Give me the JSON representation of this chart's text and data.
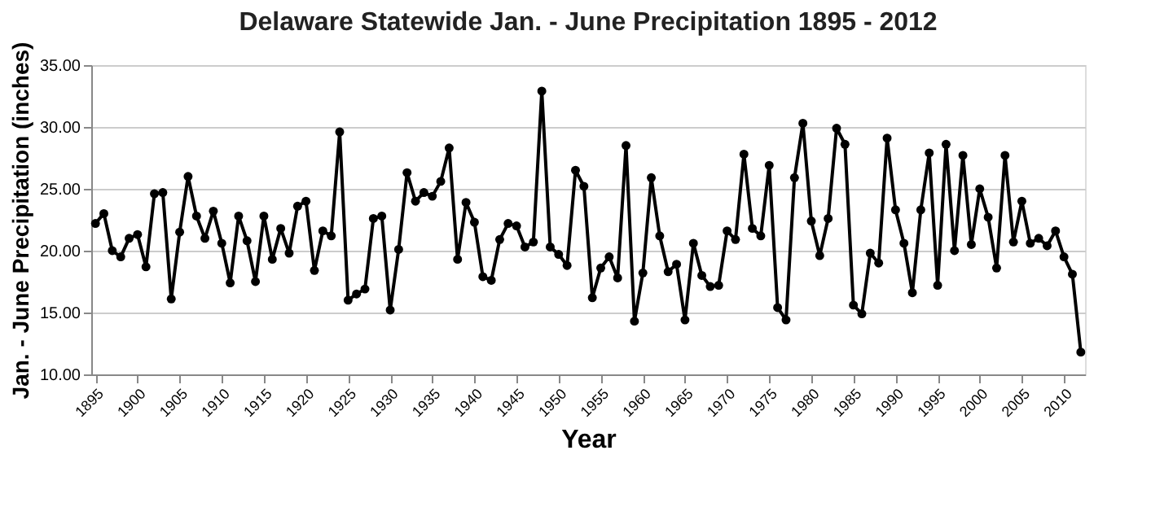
{
  "chart_data": {
    "type": "line",
    "title": "Delaware Statewide Jan. - June Precipitation 1895 - 2012",
    "xlabel": "Year",
    "ylabel": "Jan. - June Precipitation (inches)",
    "x": [
      1895,
      1896,
      1897,
      1898,
      1899,
      1900,
      1901,
      1902,
      1903,
      1904,
      1905,
      1906,
      1907,
      1908,
      1909,
      1910,
      1911,
      1912,
      1913,
      1914,
      1915,
      1916,
      1917,
      1918,
      1919,
      1920,
      1921,
      1922,
      1923,
      1924,
      1925,
      1926,
      1927,
      1928,
      1929,
      1930,
      1931,
      1932,
      1933,
      1934,
      1935,
      1936,
      1937,
      1938,
      1939,
      1940,
      1941,
      1942,
      1943,
      1944,
      1945,
      1946,
      1947,
      1948,
      1949,
      1950,
      1951,
      1952,
      1953,
      1954,
      1955,
      1956,
      1957,
      1958,
      1959,
      1960,
      1961,
      1962,
      1963,
      1964,
      1965,
      1966,
      1967,
      1968,
      1969,
      1970,
      1971,
      1972,
      1973,
      1974,
      1975,
      1976,
      1977,
      1978,
      1979,
      1980,
      1981,
      1982,
      1983,
      1984,
      1985,
      1986,
      1987,
      1988,
      1989,
      1990,
      1991,
      1992,
      1993,
      1994,
      1995,
      1996,
      1997,
      1998,
      1999,
      2000,
      2001,
      2002,
      2003,
      2004,
      2005,
      2006,
      2007,
      2008,
      2009,
      2010,
      2011,
      2012
    ],
    "series": [
      {
        "color": "#000000",
        "values": [
          22.2,
          23.0,
          20.0,
          19.5,
          21.0,
          21.3,
          18.7,
          24.6,
          24.7,
          16.1,
          21.5,
          26.0,
          22.8,
          21.0,
          23.2,
          20.6,
          17.4,
          22.8,
          20.8,
          17.5,
          22.8,
          19.3,
          21.8,
          19.8,
          23.6,
          24.0,
          18.4,
          21.6,
          21.2,
          29.6,
          16.0,
          16.5,
          16.9,
          22.6,
          22.8,
          15.2,
          20.1,
          26.3,
          24.0,
          24.7,
          24.4,
          25.6,
          28.3,
          19.3,
          23.9,
          22.3,
          17.9,
          17.6,
          20.9,
          22.2,
          22.0,
          20.3,
          20.7,
          32.9,
          20.3,
          19.7,
          18.8,
          26.5,
          25.2,
          16.2,
          18.6,
          19.5,
          17.8,
          28.5,
          14.3,
          18.2,
          25.9,
          21.2,
          18.3,
          18.9,
          14.4,
          20.6,
          18.0,
          17.1,
          17.2,
          21.6,
          20.9,
          27.8,
          21.8,
          21.2,
          26.9,
          15.4,
          14.4,
          25.9,
          30.3,
          22.4,
          19.6,
          22.6,
          29.9,
          28.6,
          15.6,
          14.9,
          19.8,
          19.0,
          29.1,
          23.3,
          20.6,
          16.6,
          23.3,
          27.9,
          17.2,
          28.6,
          20.0,
          27.7,
          20.5,
          25.0,
          22.7,
          18.6,
          27.7,
          20.7,
          24.0,
          20.6,
          21.0,
          20.4,
          21.6,
          19.5,
          18.1,
          11.8
        ]
      }
    ],
    "xlim": [
      1894.5,
      2012.5
    ],
    "xticks": [
      1895,
      1900,
      1905,
      1910,
      1915,
      1920,
      1925,
      1930,
      1935,
      1940,
      1945,
      1950,
      1955,
      1960,
      1965,
      1970,
      1975,
      1980,
      1985,
      1990,
      1995,
      2000,
      2005,
      2010
    ],
    "ylim": [
      10,
      35
    ],
    "yticks": [
      {
        "value": 10,
        "label": "10.00"
      },
      {
        "value": 15,
        "label": "15.00"
      },
      {
        "value": 20,
        "label": "20.00"
      },
      {
        "value": 25,
        "label": "25.00"
      },
      {
        "value": 30,
        "label": "30.00"
      },
      {
        "value": 35,
        "label": "35.00"
      }
    ],
    "grid": "y",
    "marker": "circle",
    "line_style": "solid"
  }
}
